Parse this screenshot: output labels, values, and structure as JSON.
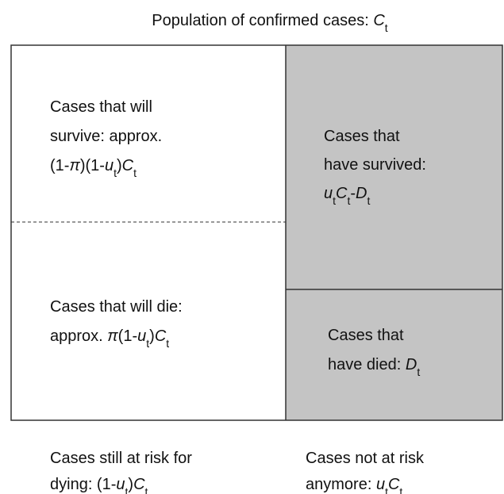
{
  "title": [
    "Population of confirmed cases: ",
    "C",
    "t"
  ],
  "cells": {
    "will_survive": {
      "lines": [
        [
          "Cases that will"
        ],
        [
          "survive: approx."
        ],
        [
          "(1-",
          "π",
          ")(1-",
          "u",
          "t",
          ")",
          "C",
          "t"
        ]
      ]
    },
    "have_survived": {
      "lines": [
        [
          "Cases that"
        ],
        [
          "have survived:"
        ],
        [
          "u",
          "t",
          "C",
          "t",
          "-",
          "D",
          "t"
        ]
      ]
    },
    "will_die": {
      "lines": [
        [
          "Cases that will die:"
        ],
        [
          "approx. ",
          "π",
          "(1-",
          "u",
          "t",
          ")",
          "C",
          "t"
        ]
      ]
    },
    "have_died": {
      "lines": [
        [
          "Cases that"
        ],
        [
          "have died: ",
          "D",
          "t"
        ]
      ]
    }
  },
  "columns": {
    "at_risk": {
      "lines": [
        [
          "Cases still at risk for"
        ],
        [
          "dying: (1-",
          "u",
          "t",
          ")",
          "C",
          "t"
        ]
      ]
    },
    "not_at_risk": {
      "lines": [
        [
          "Cases not at risk"
        ],
        [
          "anymore: ",
          "u",
          "t",
          "C",
          "t"
        ]
      ]
    }
  }
}
